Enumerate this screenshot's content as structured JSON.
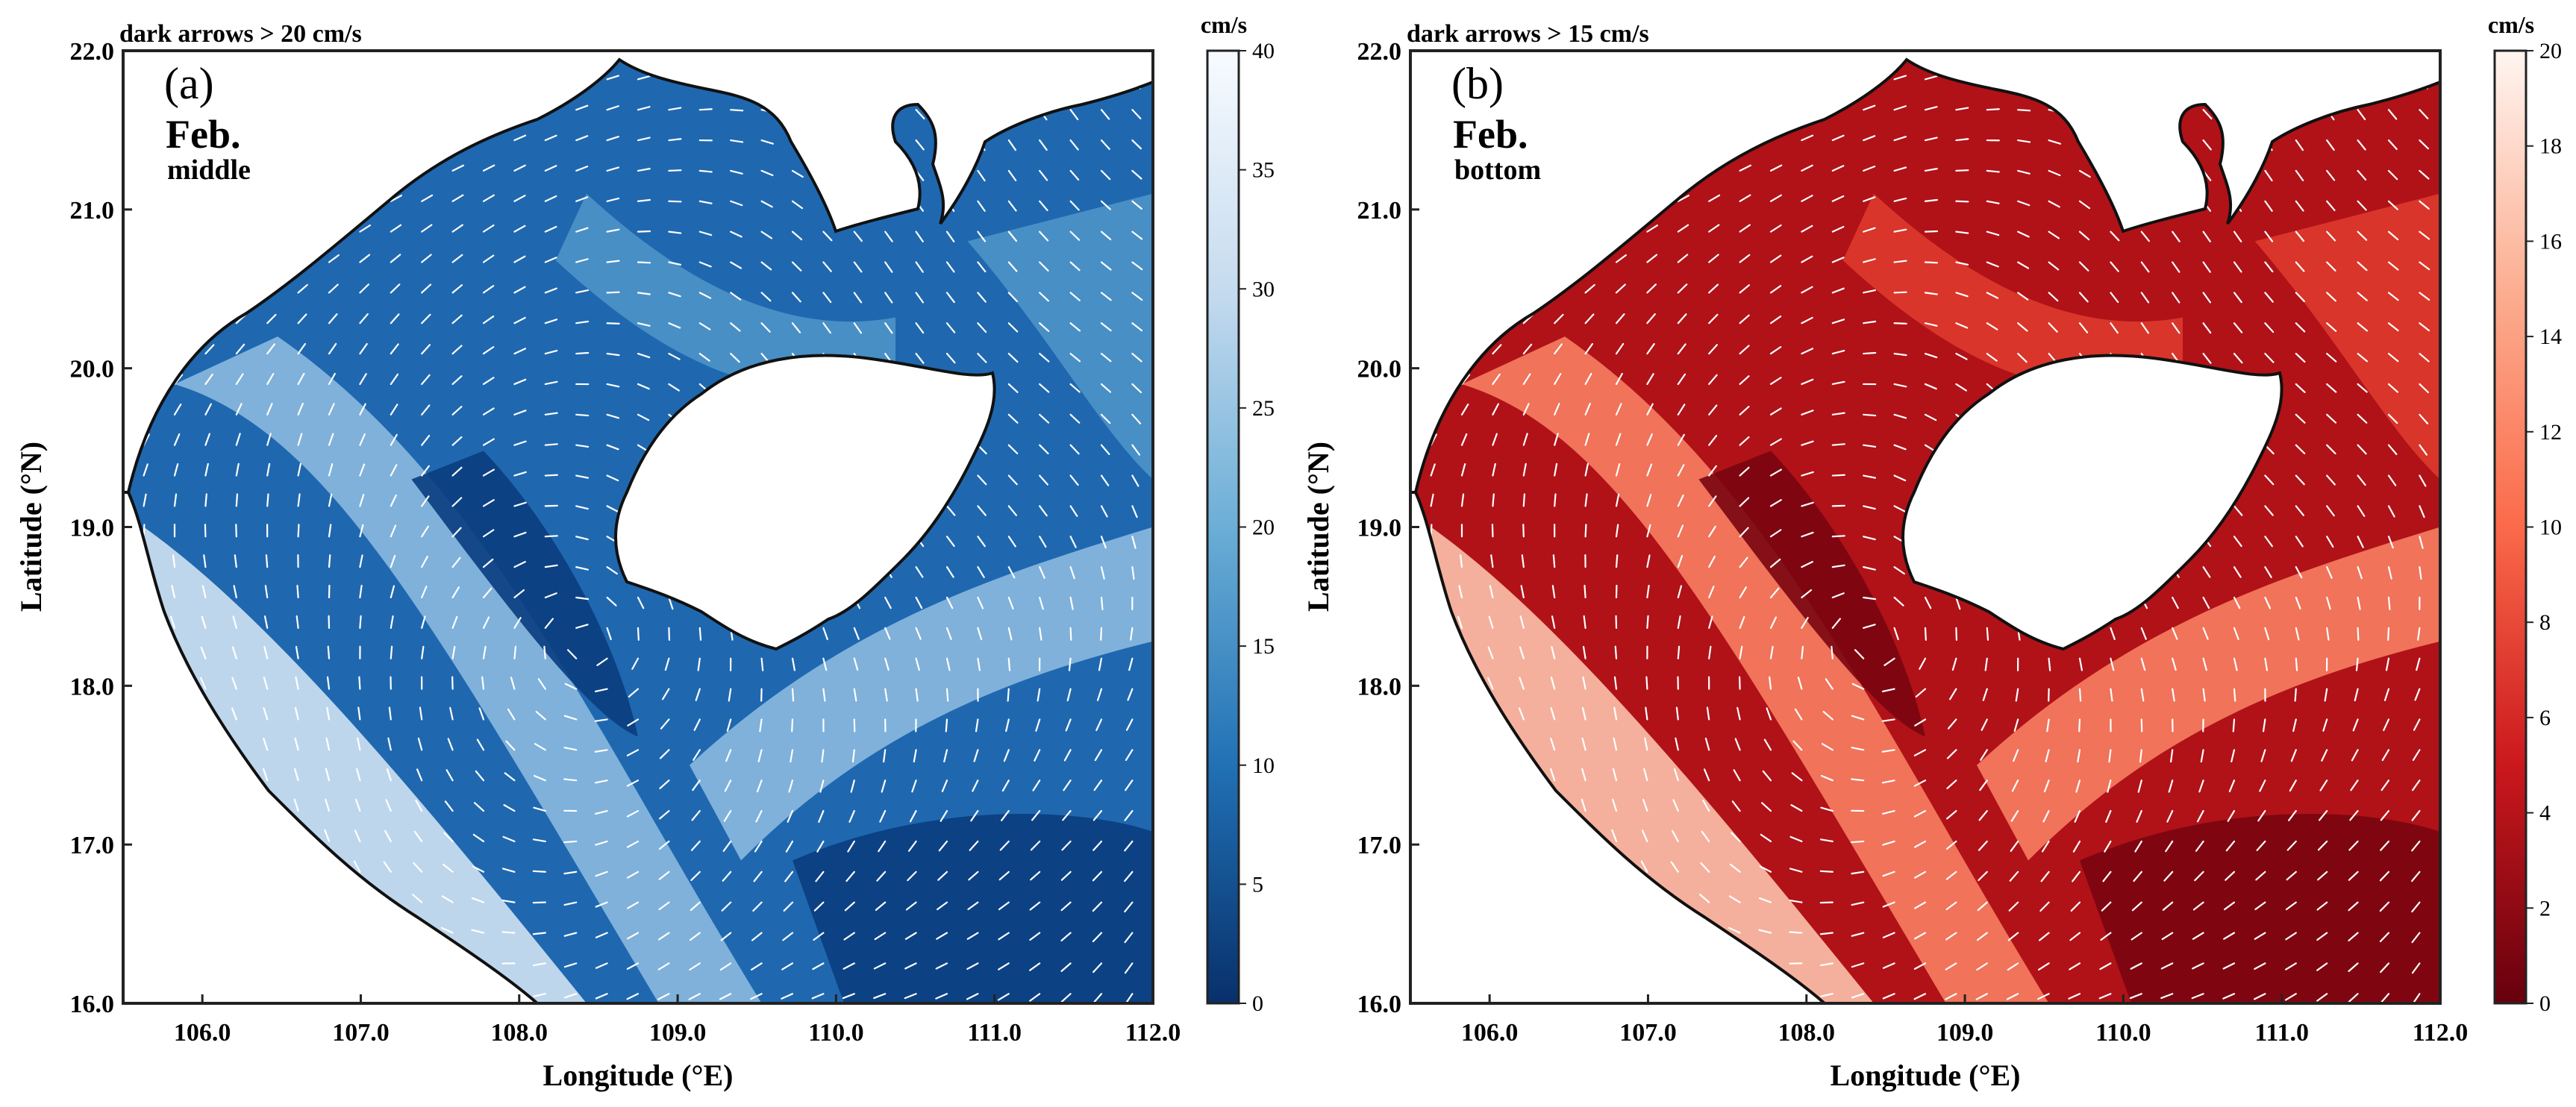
{
  "chart_data": [
    {
      "type": "heatmap",
      "panel_label": "(a)",
      "month": "Feb.",
      "layer": "middle",
      "note": "dark arrows > 20 cm/s",
      "xlabel": "Longitude (°E)",
      "ylabel": "Latitude (°N)",
      "xlim": [
        105.5,
        112.0
      ],
      "ylim": [
        16.0,
        22.0
      ],
      "x_ticks": [
        "106.0",
        "107.0",
        "108.0",
        "109.0",
        "110.0",
        "111.0",
        "112.0"
      ],
      "x_tick_values": [
        106,
        107,
        108,
        109,
        110,
        111,
        112
      ],
      "y_ticks": [
        "16.0",
        "17.0",
        "18.0",
        "19.0",
        "20.0",
        "21.0",
        "22.0"
      ],
      "y_tick_values": [
        16,
        17,
        18,
        19,
        20,
        21,
        22
      ],
      "colorbar": {
        "unit": "cm/s",
        "range": [
          0,
          40
        ],
        "ticks": [
          "0",
          "5",
          "10",
          "15",
          "20",
          "25",
          "30",
          "35",
          "40"
        ],
        "tick_values": [
          0,
          5,
          10,
          15,
          20,
          25,
          30,
          35,
          40
        ],
        "colors": [
          "#08306b",
          "#2171b5",
          "#6baed6",
          "#c6dbef",
          "#f7fbff"
        ]
      },
      "field_colors": [
        "#0a3d80",
        "#1f68b0",
        "#4c93c9",
        "#8ab9df",
        "#cfe2f3"
      ],
      "arrow_color": "#ffffff"
    },
    {
      "type": "heatmap",
      "panel_label": "(b)",
      "month": "Feb.",
      "layer": "bottom",
      "note": "dark arrows > 15 cm/s",
      "xlabel": "Longitude (°E)",
      "ylabel": "Latitude (°N)",
      "xlim": [
        105.5,
        112.0
      ],
      "ylim": [
        16.0,
        22.0
      ],
      "x_ticks": [
        "106.0",
        "107.0",
        "108.0",
        "109.0",
        "110.0",
        "111.0",
        "112.0"
      ],
      "x_tick_values": [
        106,
        107,
        108,
        109,
        110,
        111,
        112
      ],
      "y_ticks": [
        "16.0",
        "17.0",
        "18.0",
        "19.0",
        "20.0",
        "21.0",
        "22.0"
      ],
      "y_tick_values": [
        16,
        17,
        18,
        19,
        20,
        21,
        22
      ],
      "colorbar": {
        "unit": "cm/s",
        "range": [
          0,
          20
        ],
        "ticks": [
          "0",
          "2",
          "4",
          "6",
          "8",
          "10",
          "12",
          "14",
          "16",
          "18",
          "20"
        ],
        "tick_values": [
          0,
          2,
          4,
          6,
          8,
          10,
          12,
          14,
          16,
          18,
          20
        ],
        "colors": [
          "#67000d",
          "#cb181d",
          "#fb6a4a",
          "#fcae91",
          "#fff5f0"
        ]
      },
      "field_colors": [
        "#7a0510",
        "#b01218",
        "#de3a2c",
        "#f77e62",
        "#fcc2ab"
      ],
      "arrow_color": "#ffffff"
    }
  ]
}
